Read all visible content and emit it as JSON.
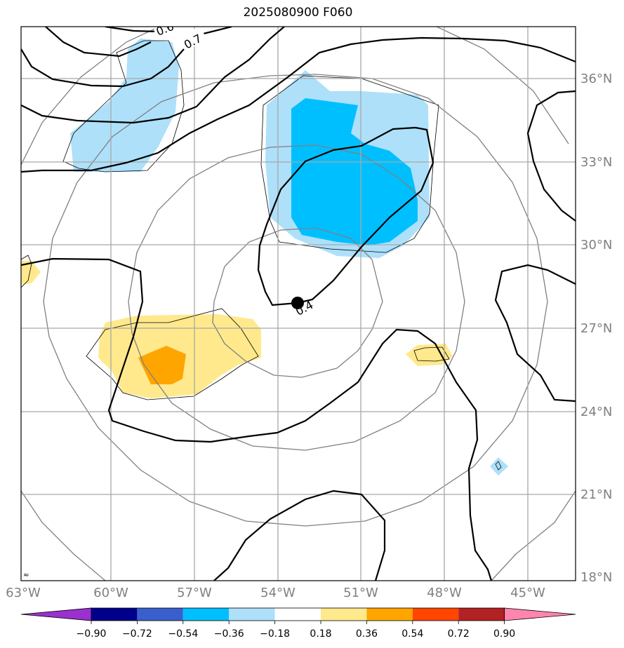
{
  "title": "2025080900 F060",
  "lon_labels": [
    "63°W",
    "60°W",
    "57°W",
    "54°W",
    "51°W",
    "48°W",
    "45°W"
  ],
  "lat_labels": [
    "36°N",
    "33°N",
    "30°N",
    "27°N",
    "24°N",
    "21°N",
    "18°N"
  ],
  "contour_labels": [
    "0.6",
    "0.7",
    "0.4"
  ],
  "colorbar": {
    "ticks": [
      "−0.90",
      "−0.72",
      "−0.54",
      "−0.36",
      "−0.18",
      "0.18",
      "0.36",
      "0.54",
      "0.72",
      "0.90"
    ],
    "colors": [
      "#9b30d0",
      "#00008b",
      "#3a5fcd",
      "#00bfff",
      "#aee0fa",
      "#ffffff",
      "#ffe98c",
      "#ffa500",
      "#ff4500",
      "#b22222",
      "#ff85ad"
    ]
  },
  "marker": {
    "name": "storm-center"
  }
}
